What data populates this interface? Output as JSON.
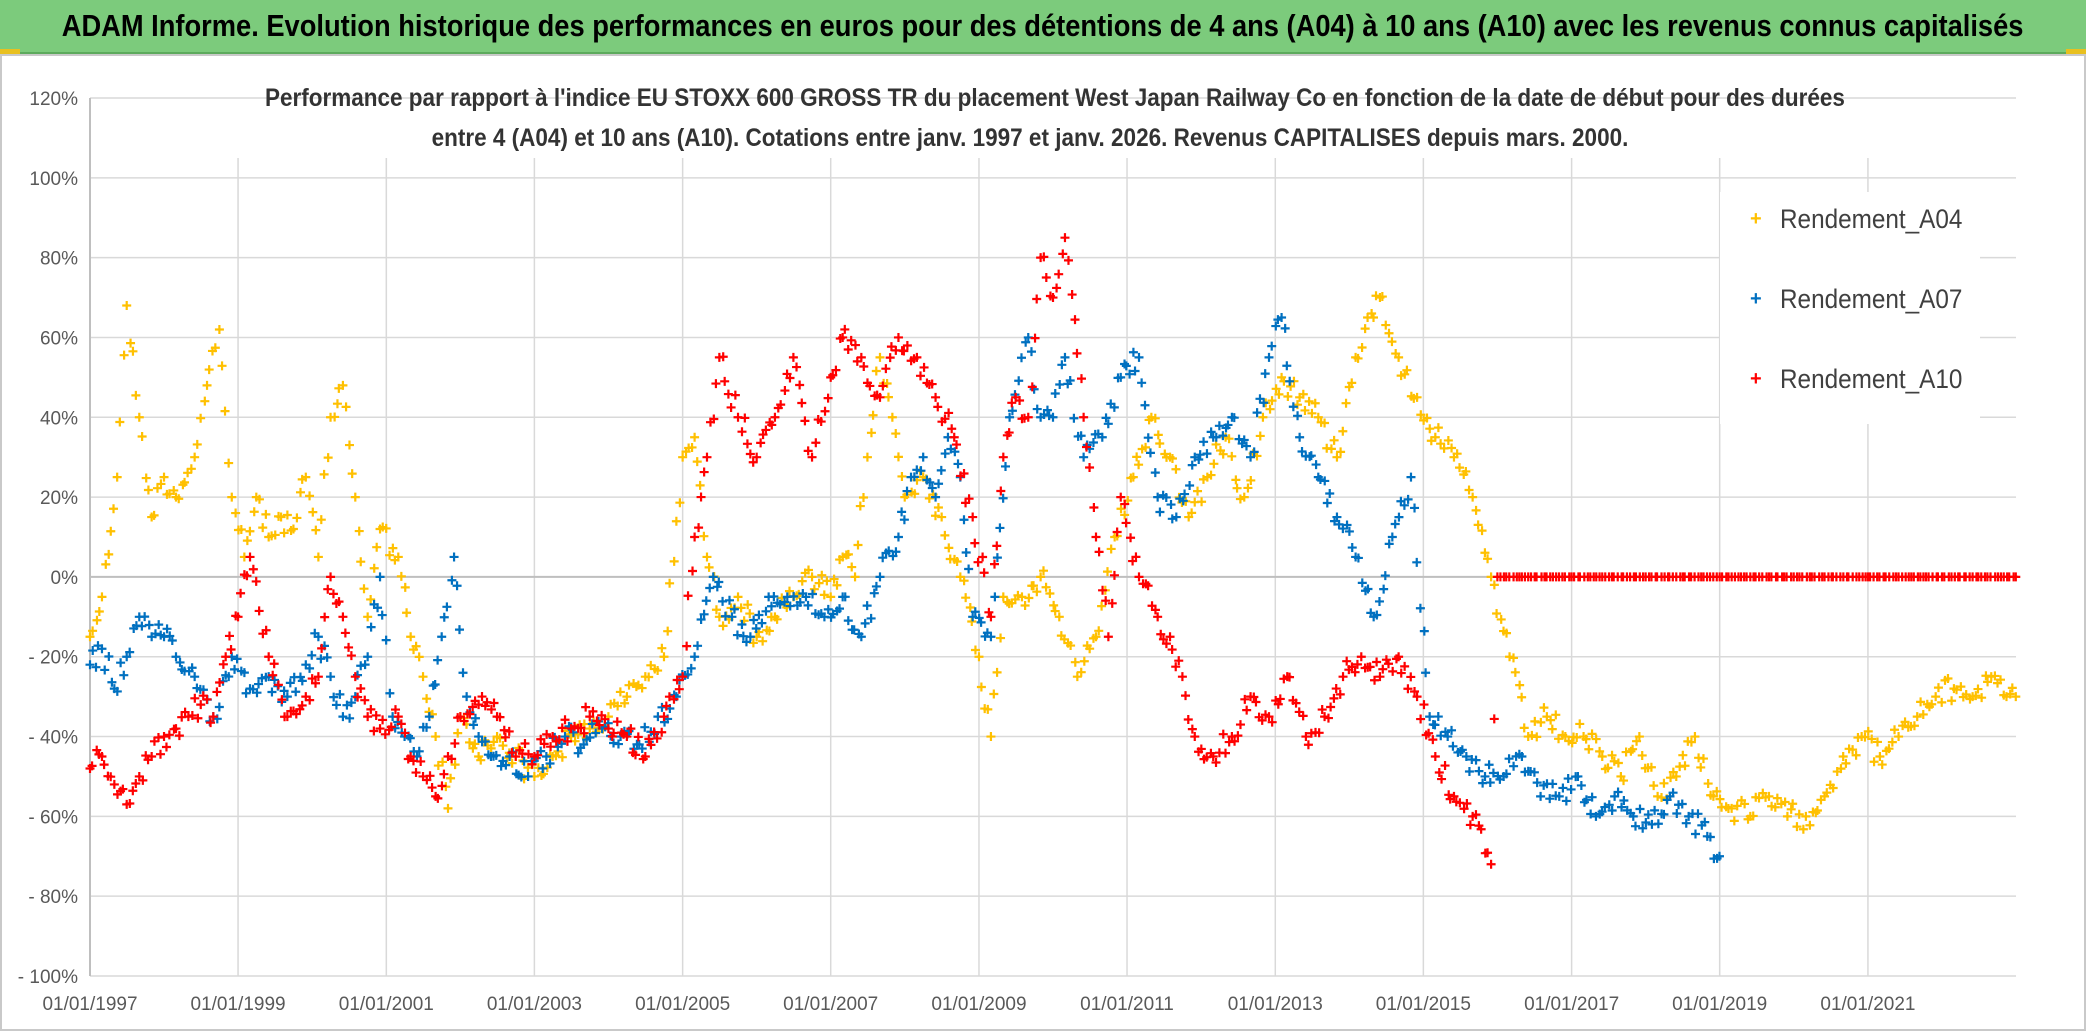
{
  "banner": {
    "title": "ADAM Informe. Evolution historique des performances en euros pour des détentions de 4 ans (A04) à 10 ans (A10) avec les revenus connus capitalisés"
  },
  "chart_data": {
    "type": "scatter",
    "title_line1": "Performance par rapport à l'indice EU STOXX 600 GROSS TR  du placement West Japan Railway Co en fonction de la date de début pour des durées",
    "title_line2": "entre 4 (A04) et 10 ans (A10). Cotations entre janv. 1997 et janv. 2026. Revenus CAPITALISES depuis mars. 2000.",
    "xlim": [
      "1997-01-01",
      "2023-01-01"
    ],
    "ylim": [
      -100,
      120
    ],
    "y_ticks": [
      120,
      100,
      80,
      60,
      40,
      20,
      0,
      -20,
      -40,
      -60,
      -80,
      -100
    ],
    "y_tick_labels": [
      "120%",
      "100%",
      "80%",
      "60%",
      "40%",
      "20%",
      "0%",
      "- 20%",
      "- 40%",
      "- 60%",
      "- 80%",
      "- 100%"
    ],
    "x_ticks": [
      "1997-01-01",
      "1999-01-01",
      "2001-01-01",
      "2003-01-01",
      "2005-01-01",
      "2007-01-01",
      "2009-01-01",
      "2011-01-01",
      "2013-01-01",
      "2015-01-01",
      "2017-01-01",
      "2019-01-01",
      "2021-01-01"
    ],
    "x_tick_labels": [
      "01/01/1997",
      "01/01/1999",
      "01/01/2001",
      "01/01/2003",
      "01/01/2005",
      "01/01/2007",
      "01/01/2009",
      "01/01/2011",
      "01/01/2013",
      "01/01/2015",
      "01/01/2017",
      "01/01/2019",
      "01/01/2021"
    ],
    "grid": "vertical and horizontal",
    "legend_position": "right",
    "marker": "+",
    "series": [
      {
        "name": "Rendement_A04",
        "color": "#FFC000",
        "x": [
          "1997-01-01",
          "1997-03-01",
          "1997-05-15",
          "1997-07-01",
          "1997-09-01",
          "1997-11-01",
          "1998-01-01",
          "1998-03-01",
          "1998-06-01",
          "1998-08-01",
          "1998-10-01",
          "1998-12-01",
          "1999-02-01",
          "1999-04-01",
          "1999-06-01",
          "1999-08-01",
          "1999-10-01",
          "1999-12-01",
          "2000-02-01",
          "2000-04-01",
          "2000-06-01",
          "2000-08-01",
          "2000-10-01",
          "2000-12-01",
          "2001-03-01",
          "2001-05-01",
          "2001-07-01",
          "2001-09-01",
          "2001-11-01",
          "2002-01-01",
          "2002-04-01",
          "2002-07-01",
          "2002-10-01",
          "2003-01-01",
          "2003-04-01",
          "2003-07-01",
          "2003-10-01",
          "2004-01-01",
          "2004-04-01",
          "2004-07-01",
          "2004-10-01",
          "2005-01-01",
          "2005-03-01",
          "2005-05-01",
          "2005-07-01",
          "2005-10-01",
          "2006-01-01",
          "2006-04-01",
          "2006-07-01",
          "2006-10-01",
          "2007-01-01",
          "2007-03-01",
          "2007-05-01",
          "2007-07-01",
          "2007-09-01",
          "2007-11-01",
          "2008-01-01",
          "2008-04-01",
          "2008-07-01",
          "2008-10-01",
          "2009-01-01",
          "2009-03-01",
          "2009-05-01",
          "2009-08-01",
          "2009-11-01",
          "2010-02-01",
          "2010-05-01",
          "2010-08-01",
          "2010-11-01",
          "2011-02-01",
          "2011-05-01",
          "2011-08-01",
          "2011-11-01",
          "2012-02-01",
          "2012-05-01",
          "2012-08-01",
          "2012-11-01",
          "2013-02-01",
          "2013-05-01",
          "2013-08-01",
          "2013-11-01",
          "2014-02-01",
          "2014-04-01",
          "2014-06-01",
          "2014-09-01",
          "2014-12-01",
          "2015-03-01",
          "2015-06-01",
          "2015-09-01",
          "2015-12-01",
          "2016-03-01",
          "2016-06-01",
          "2016-09-01",
          "2016-12-01",
          "2017-03-01",
          "2017-06-01",
          "2017-09-01",
          "2017-12-01",
          "2018-03-01",
          "2018-06-01",
          "2018-09-01",
          "2018-12-01",
          "2019-03-01",
          "2019-06-01",
          "2019-09-01",
          "2019-12-01",
          "2020-03-01",
          "2020-06-01",
          "2020-09-01",
          "2020-12-01",
          "2021-03-01",
          "2021-06-01",
          "2021-09-01",
          "2021-12-01",
          "2022-03-01",
          "2022-06-01",
          "2022-09-01",
          "2022-12-31"
        ],
        "y": [
          -15,
          -5,
          25,
          68,
          40,
          15,
          25,
          20,
          30,
          48,
          62,
          20,
          5,
          20,
          10,
          15,
          12,
          25,
          5,
          40,
          48,
          20,
          -10,
          12,
          5,
          -15,
          -25,
          -40,
          -58,
          -35,
          -45,
          -40,
          -45,
          -50,
          -45,
          -40,
          -38,
          -35,
          -30,
          -25,
          -20,
          30,
          35,
          5,
          -10,
          -5,
          -15,
          -10,
          -5,
          0,
          -5,
          5,
          0,
          30,
          55,
          40,
          20,
          25,
          15,
          0,
          -20,
          -40,
          -5,
          -5,
          0,
          -10,
          -25,
          -15,
          10,
          25,
          40,
          30,
          15,
          25,
          35,
          20,
          40,
          50,
          45,
          40,
          30,
          55,
          65,
          70,
          55,
          45,
          35,
          30,
          20,
          0,
          -20,
          -40,
          -35,
          -40,
          -40,
          -45,
          -50,
          -40,
          -55,
          -50,
          -40,
          -55,
          -58,
          -60,
          -55,
          -60,
          -60,
          -55,
          -45,
          -40,
          -45,
          -40,
          -35,
          -30,
          -28,
          -30,
          -25,
          -30
        ]
      },
      {
        "name": "Rendement_A07",
        "color": "#0070C0",
        "x": [
          "1997-01-01",
          "1997-03-01",
          "1997-05-01",
          "1997-07-01",
          "1997-09-01",
          "1997-11-01",
          "1998-01-01",
          "1998-03-01",
          "1998-06-01",
          "1998-09-01",
          "1998-12-01",
          "1999-03-01",
          "1999-06-01",
          "1999-09-01",
          "1999-12-01",
          "2000-02-01",
          "2000-04-01",
          "2000-06-01",
          "2000-08-01",
          "2000-10-01",
          "2000-12-01",
          "2001-02-01",
          "2001-04-01",
          "2001-06-01",
          "2001-08-01",
          "2001-10-01",
          "2001-12-01",
          "2002-02-01",
          "2002-04-01",
          "2002-06-01",
          "2002-09-01",
          "2002-12-01",
          "2003-03-01",
          "2003-06-01",
          "2003-09-01",
          "2003-12-01",
          "2004-03-01",
          "2004-06-01",
          "2004-09-01",
          "2004-12-01",
          "2005-03-01",
          "2005-06-01",
          "2005-09-01",
          "2005-12-01",
          "2006-03-01",
          "2006-06-01",
          "2006-09-01",
          "2006-12-01",
          "2007-03-01",
          "2007-06-01",
          "2007-09-01",
          "2007-12-01",
          "2008-02-01",
          "2008-04-01",
          "2008-06-01",
          "2008-08-01",
          "2008-10-01",
          "2008-12-01",
          "2009-03-01",
          "2009-06-01",
          "2009-09-01",
          "2009-11-01",
          "2010-01-01",
          "2010-03-01",
          "2010-06-01",
          "2010-09-01",
          "2010-12-01",
          "2011-03-01",
          "2011-06-01",
          "2011-09-01",
          "2011-12-01",
          "2012-03-01",
          "2012-06-01",
          "2012-09-01",
          "2012-12-01",
          "2013-02-01",
          "2013-05-01",
          "2013-08-01",
          "2013-11-01",
          "2014-02-01",
          "2014-05-01",
          "2014-08-01",
          "2014-11-01",
          "2015-02-01",
          "2015-05-01",
          "2015-08-01",
          "2015-11-01",
          "2016-02-01",
          "2016-05-01",
          "2016-08-01",
          "2016-11-01",
          "2017-02-01",
          "2017-05-01",
          "2017-08-01",
          "2017-11-01",
          "2018-02-01",
          "2018-05-01",
          "2018-08-01",
          "2018-11-01",
          "2018-12-31"
        ],
        "y": [
          -22,
          -18,
          -28,
          -20,
          -10,
          -15,
          -15,
          -20,
          -25,
          -35,
          -20,
          -28,
          -25,
          -30,
          -22,
          -15,
          -25,
          -35,
          -30,
          -20,
          0,
          -35,
          -40,
          -45,
          -35,
          -15,
          5,
          -30,
          -40,
          -45,
          -45,
          -50,
          -45,
          -40,
          -42,
          -38,
          -40,
          -42,
          -35,
          -30,
          -20,
          0,
          -10,
          -15,
          -5,
          -5,
          -5,
          -10,
          -5,
          -15,
          0,
          10,
          25,
          30,
          20,
          35,
          25,
          -10,
          -15,
          40,
          60,
          40,
          40,
          55,
          30,
          35,
          50,
          55,
          20,
          15,
          30,
          35,
          40,
          30,
          55,
          65,
          35,
          25,
          15,
          5,
          -10,
          10,
          25,
          -35,
          -40,
          -45,
          -50,
          -50,
          -45,
          -55,
          -55,
          -50,
          -60,
          -55,
          -60,
          -62,
          -55,
          -60,
          -65,
          -70
        ]
      },
      {
        "name": "Rendement_A10",
        "color": "#FF0000",
        "x": [
          "1997-01-01",
          "1997-03-01",
          "1997-05-01",
          "1997-07-01",
          "1997-09-01",
          "1997-11-01",
          "1998-01-01",
          "1998-03-01",
          "1998-05-01",
          "1998-07-01",
          "1998-09-01",
          "1998-11-01",
          "1999-01-01",
          "1999-03-01",
          "1999-06-01",
          "1999-09-01",
          "1999-12-01",
          "2000-02-01",
          "2000-04-01",
          "2000-06-01",
          "2000-08-01",
          "2000-10-01",
          "2000-12-01",
          "2001-03-01",
          "2001-05-01",
          "2001-07-01",
          "2001-09-01",
          "2001-11-01",
          "2002-01-01",
          "2002-04-01",
          "2002-07-01",
          "2002-10-01",
          "2003-01-01",
          "2003-04-01",
          "2003-07-01",
          "2003-10-01",
          "2004-01-01",
          "2004-04-01",
          "2004-07-01",
          "2004-10-01",
          "2005-01-01",
          "2005-03-01",
          "2005-05-01",
          "2005-07-01",
          "2005-10-01",
          "2006-01-01",
          "2006-04-01",
          "2006-07-01",
          "2006-10-01",
          "2007-01-01",
          "2007-03-01",
          "2007-06-01",
          "2007-09-01",
          "2007-12-01",
          "2008-03-01",
          "2008-06-01",
          "2008-09-01",
          "2008-12-01",
          "2009-03-01",
          "2009-05-01",
          "2009-07-01",
          "2009-09-01",
          "2009-11-01",
          "2010-01-01",
          "2010-03-01",
          "2010-06-01",
          "2010-08-01",
          "2010-10-01",
          "2010-12-01",
          "2011-03-01",
          "2011-06-01",
          "2011-08-01",
          "2011-10-01",
          "2011-12-01",
          "2012-03-01",
          "2012-06-01",
          "2012-09-01",
          "2012-12-01",
          "2013-03-01",
          "2013-06-01",
          "2013-09-01",
          "2013-12-01",
          "2014-03-01",
          "2014-06-01",
          "2014-09-01",
          "2014-12-01",
          "2015-03-01",
          "2015-06-01",
          "2015-09-01",
          "2015-12-01",
          "2016-01-01",
          "2016-06-01",
          "2017-01-01",
          "2017-06-01",
          "2018-01-01",
          "2018-06-01",
          "2019-01-01",
          "2019-06-01",
          "2020-01-01",
          "2020-06-01",
          "2021-01-01",
          "2021-06-01",
          "2022-01-01",
          "2022-06-01",
          "2022-12-31"
        ],
        "y": [
          -48,
          -45,
          -52,
          -57,
          -50,
          -45,
          -40,
          -38,
          -35,
          -32,
          -35,
          -20,
          -10,
          5,
          -20,
          -35,
          -30,
          -25,
          0,
          -10,
          -25,
          -35,
          -38,
          -35,
          -45,
          -50,
          -55,
          -45,
          -35,
          -32,
          -35,
          -45,
          -45,
          -40,
          -38,
          -35,
          -38,
          -40,
          -45,
          -35,
          -25,
          10,
          30,
          55,
          40,
          30,
          40,
          55,
          30,
          50,
          60,
          55,
          45,
          60,
          55,
          45,
          35,
          15,
          -10,
          30,
          45,
          40,
          80,
          70,
          85,
          40,
          10,
          -15,
          20,
          0,
          -10,
          -15,
          -25,
          -40,
          -45,
          -40,
          -30,
          -35,
          -25,
          -40,
          -35,
          -25,
          -20,
          -25,
          -20,
          -30,
          -45,
          -55,
          -60,
          -72,
          0,
          0,
          0,
          0,
          0,
          0,
          0,
          0,
          0,
          0,
          0,
          0,
          0,
          0,
          0
        ]
      }
    ]
  }
}
